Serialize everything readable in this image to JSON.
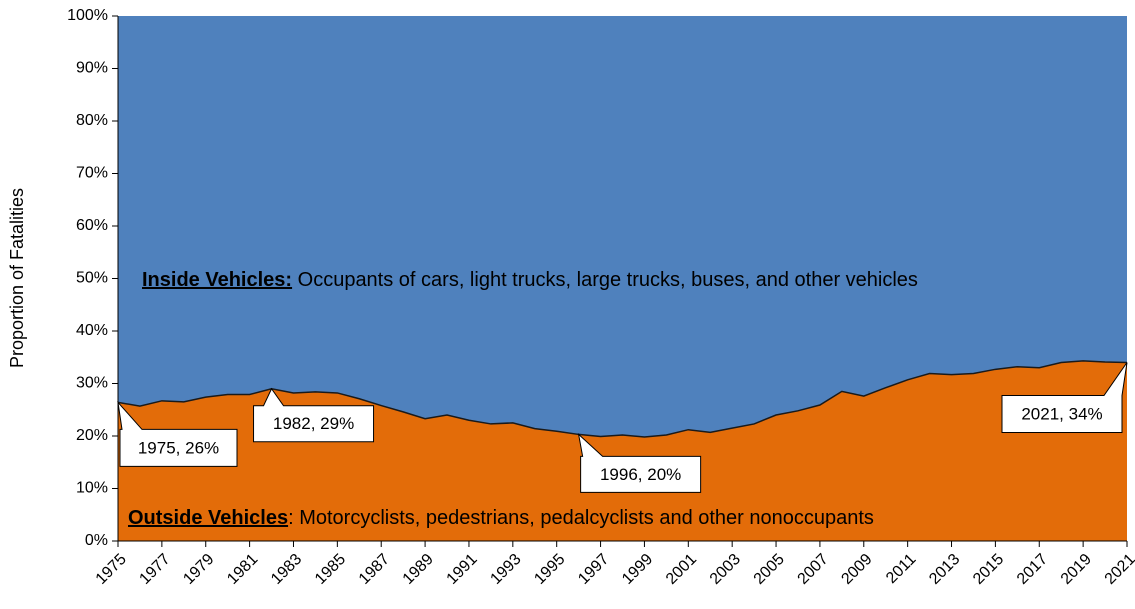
{
  "chart_data": {
    "type": "stacked_area",
    "ylabel": "Proportion of Fatalities",
    "x": [
      1975,
      1976,
      1977,
      1978,
      1979,
      1980,
      1981,
      1982,
      1983,
      1984,
      1985,
      1986,
      1987,
      1988,
      1989,
      1990,
      1991,
      1992,
      1993,
      1994,
      1995,
      1996,
      1997,
      1998,
      1999,
      2000,
      2001,
      2002,
      2003,
      2004,
      2005,
      2006,
      2007,
      2008,
      2009,
      2010,
      2011,
      2012,
      2013,
      2014,
      2015,
      2016,
      2017,
      2018,
      2019,
      2020,
      2021
    ],
    "xlim": [
      1975,
      2021
    ],
    "xticks": [
      1975,
      1977,
      1979,
      1981,
      1983,
      1985,
      1987,
      1989,
      1991,
      1993,
      1995,
      1997,
      1999,
      2001,
      2003,
      2005,
      2007,
      2009,
      2011,
      2013,
      2015,
      2017,
      2019,
      2021
    ],
    "ylim": [
      0,
      100
    ],
    "yticks": [
      {
        "value": 0,
        "label": "0%"
      },
      {
        "value": 10,
        "label": "10%"
      },
      {
        "value": 20,
        "label": "20%"
      },
      {
        "value": 30,
        "label": "30%"
      },
      {
        "value": 40,
        "label": "40%"
      },
      {
        "value": 50,
        "label": "50%"
      },
      {
        "value": 60,
        "label": "60%"
      },
      {
        "value": 70,
        "label": "70%"
      },
      {
        "value": 80,
        "label": "80%"
      },
      {
        "value": 90,
        "label": "90%"
      },
      {
        "value": 100,
        "label": "100%"
      }
    ],
    "series": [
      {
        "name": "Outside Vehicles",
        "description": ": Motorcyclists, pedestrians, pedalcyclists and other nonoccupants",
        "color": "#e36c09",
        "values": [
          26.4,
          25.7,
          26.7,
          26.5,
          27.4,
          27.9,
          27.9,
          29.0,
          28.2,
          28.4,
          28.2,
          27.1,
          25.8,
          24.6,
          23.3,
          24.0,
          23.0,
          22.3,
          22.5,
          21.4,
          20.9,
          20.3,
          19.9,
          20.2,
          19.8,
          20.2,
          21.2,
          20.7,
          21.5,
          22.3,
          24.0,
          24.8,
          25.9,
          28.5,
          27.6,
          29.2,
          30.7,
          31.9,
          31.7,
          31.9,
          32.7,
          33.2,
          33.0,
          34.0,
          34.3,
          34.1,
          34.0
        ],
        "value_labels": [
          "1975, 26%",
          null,
          null,
          null,
          null,
          null,
          null,
          "1982, 29%",
          null,
          null,
          null,
          null,
          null,
          null,
          null,
          null,
          null,
          null,
          null,
          null,
          null,
          "1996, 20%",
          null,
          null,
          null,
          null,
          null,
          null,
          null,
          null,
          null,
          null,
          null,
          null,
          null,
          null,
          null,
          null,
          null,
          null,
          null,
          null,
          null,
          null,
          null,
          null,
          "2021, 34%"
        ]
      },
      {
        "name": "Inside Vehicles:",
        "description": " Occupants of cars, light trucks, large trucks, buses, and other vehicles",
        "color": "#4f81bd",
        "values": [
          73.6,
          74.3,
          73.3,
          73.5,
          72.6,
          72.1,
          72.1,
          71.0,
          71.8,
          71.6,
          71.8,
          72.9,
          74.2,
          75.4,
          76.7,
          76.0,
          77.0,
          77.7,
          77.5,
          78.6,
          79.1,
          79.7,
          80.1,
          79.8,
          80.2,
          79.8,
          78.8,
          79.3,
          78.5,
          77.7,
          76.0,
          75.2,
          74.1,
          71.5,
          72.4,
          70.8,
          69.3,
          68.1,
          68.3,
          68.1,
          67.3,
          66.8,
          67.0,
          66.0,
          65.7,
          65.9,
          66.0
        ]
      }
    ]
  }
}
